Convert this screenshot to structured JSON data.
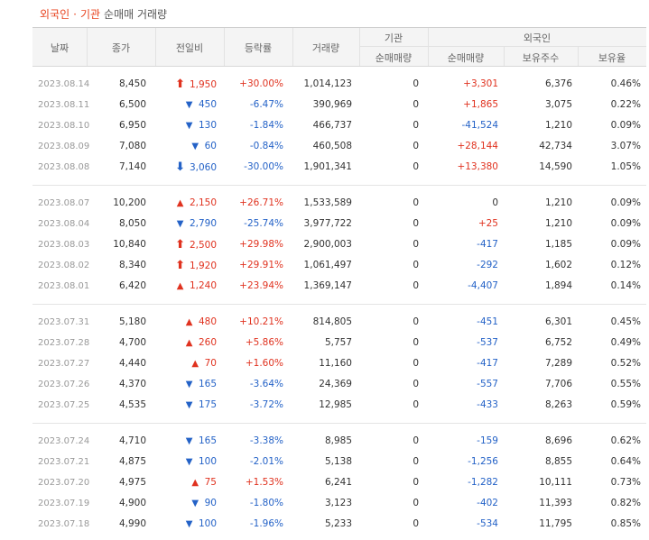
{
  "title": {
    "part1": "외국인",
    "dot": "·",
    "part2": "기관",
    "rest": "순매매 거래량"
  },
  "headers": {
    "date": "날짜",
    "close": "종가",
    "change": "전일비",
    "rate": "등락률",
    "volume": "거래량",
    "institution": "기관",
    "foreign": "외국인",
    "inst_net": "순매매량",
    "for_net": "순매매량",
    "for_hold": "보유주수",
    "for_ratio": "보유율"
  },
  "colors": {
    "up": "#e0321f",
    "down": "#2462c7"
  },
  "rows": [
    {
      "date": "2023.08.14",
      "close": "8,450",
      "arrow": "upper-limit",
      "change": "1,950",
      "rate": "+30.00%",
      "volume": "1,014,123",
      "inst": "0",
      "fnet": "+3,301",
      "hold": "6,376",
      "ratio": "0.46%"
    },
    {
      "date": "2023.08.11",
      "close": "6,500",
      "arrow": "down",
      "change": "450",
      "rate": "-6.47%",
      "volume": "390,969",
      "inst": "0",
      "fnet": "+1,865",
      "hold": "3,075",
      "ratio": "0.22%"
    },
    {
      "date": "2023.08.10",
      "close": "6,950",
      "arrow": "down",
      "change": "130",
      "rate": "-1.84%",
      "volume": "466,737",
      "inst": "0",
      "fnet": "-41,524",
      "hold": "1,210",
      "ratio": "0.09%"
    },
    {
      "date": "2023.08.09",
      "close": "7,080",
      "arrow": "down",
      "change": "60",
      "rate": "-0.84%",
      "volume": "460,508",
      "inst": "0",
      "fnet": "+28,144",
      "hold": "42,734",
      "ratio": "3.07%"
    },
    {
      "date": "2023.08.08",
      "close": "7,140",
      "arrow": "lower-limit",
      "change": "3,060",
      "rate": "-30.00%",
      "volume": "1,901,341",
      "inst": "0",
      "fnet": "+13,380",
      "hold": "14,590",
      "ratio": "1.05%"
    },
    {
      "date": "2023.08.07",
      "close": "10,200",
      "arrow": "up",
      "change": "2,150",
      "rate": "+26.71%",
      "volume": "1,533,589",
      "inst": "0",
      "fnet": "0",
      "hold": "1,210",
      "ratio": "0.09%"
    },
    {
      "date": "2023.08.04",
      "close": "8,050",
      "arrow": "down",
      "change": "2,790",
      "rate": "-25.74%",
      "volume": "3,977,722",
      "inst": "0",
      "fnet": "+25",
      "hold": "1,210",
      "ratio": "0.09%"
    },
    {
      "date": "2023.08.03",
      "close": "10,840",
      "arrow": "upper-limit",
      "change": "2,500",
      "rate": "+29.98%",
      "volume": "2,900,003",
      "inst": "0",
      "fnet": "-417",
      "hold": "1,185",
      "ratio": "0.09%"
    },
    {
      "date": "2023.08.02",
      "close": "8,340",
      "arrow": "upper-limit",
      "change": "1,920",
      "rate": "+29.91%",
      "volume": "1,061,497",
      "inst": "0",
      "fnet": "-292",
      "hold": "1,602",
      "ratio": "0.12%"
    },
    {
      "date": "2023.08.01",
      "close": "6,420",
      "arrow": "up",
      "change": "1,240",
      "rate": "+23.94%",
      "volume": "1,369,147",
      "inst": "0",
      "fnet": "-4,407",
      "hold": "1,894",
      "ratio": "0.14%"
    },
    {
      "date": "2023.07.31",
      "close": "5,180",
      "arrow": "up",
      "change": "480",
      "rate": "+10.21%",
      "volume": "814,805",
      "inst": "0",
      "fnet": "-451",
      "hold": "6,301",
      "ratio": "0.45%"
    },
    {
      "date": "2023.07.28",
      "close": "4,700",
      "arrow": "up",
      "change": "260",
      "rate": "+5.86%",
      "volume": "5,757",
      "inst": "0",
      "fnet": "-537",
      "hold": "6,752",
      "ratio": "0.49%"
    },
    {
      "date": "2023.07.27",
      "close": "4,440",
      "arrow": "up",
      "change": "70",
      "rate": "+1.60%",
      "volume": "11,160",
      "inst": "0",
      "fnet": "-417",
      "hold": "7,289",
      "ratio": "0.52%"
    },
    {
      "date": "2023.07.26",
      "close": "4,370",
      "arrow": "down",
      "change": "165",
      "rate": "-3.64%",
      "volume": "24,369",
      "inst": "0",
      "fnet": "-557",
      "hold": "7,706",
      "ratio": "0.55%"
    },
    {
      "date": "2023.07.25",
      "close": "4,535",
      "arrow": "down",
      "change": "175",
      "rate": "-3.72%",
      "volume": "12,985",
      "inst": "0",
      "fnet": "-433",
      "hold": "8,263",
      "ratio": "0.59%"
    },
    {
      "date": "2023.07.24",
      "close": "4,710",
      "arrow": "down",
      "change": "165",
      "rate": "-3.38%",
      "volume": "8,985",
      "inst": "0",
      "fnet": "-159",
      "hold": "8,696",
      "ratio": "0.62%"
    },
    {
      "date": "2023.07.21",
      "close": "4,875",
      "arrow": "down",
      "change": "100",
      "rate": "-2.01%",
      "volume": "5,138",
      "inst": "0",
      "fnet": "-1,256",
      "hold": "8,855",
      "ratio": "0.64%"
    },
    {
      "date": "2023.07.20",
      "close": "4,975",
      "arrow": "up",
      "change": "75",
      "rate": "+1.53%",
      "volume": "6,241",
      "inst": "0",
      "fnet": "-1,282",
      "hold": "10,111",
      "ratio": "0.73%"
    },
    {
      "date": "2023.07.19",
      "close": "4,900",
      "arrow": "down",
      "change": "90",
      "rate": "-1.80%",
      "volume": "3,123",
      "inst": "0",
      "fnet": "-402",
      "hold": "11,393",
      "ratio": "0.82%"
    },
    {
      "date": "2023.07.18",
      "close": "4,990",
      "arrow": "down",
      "change": "100",
      "rate": "-1.96%",
      "volume": "5,233",
      "inst": "0",
      "fnet": "-534",
      "hold": "11,795",
      "ratio": "0.85%"
    }
  ]
}
